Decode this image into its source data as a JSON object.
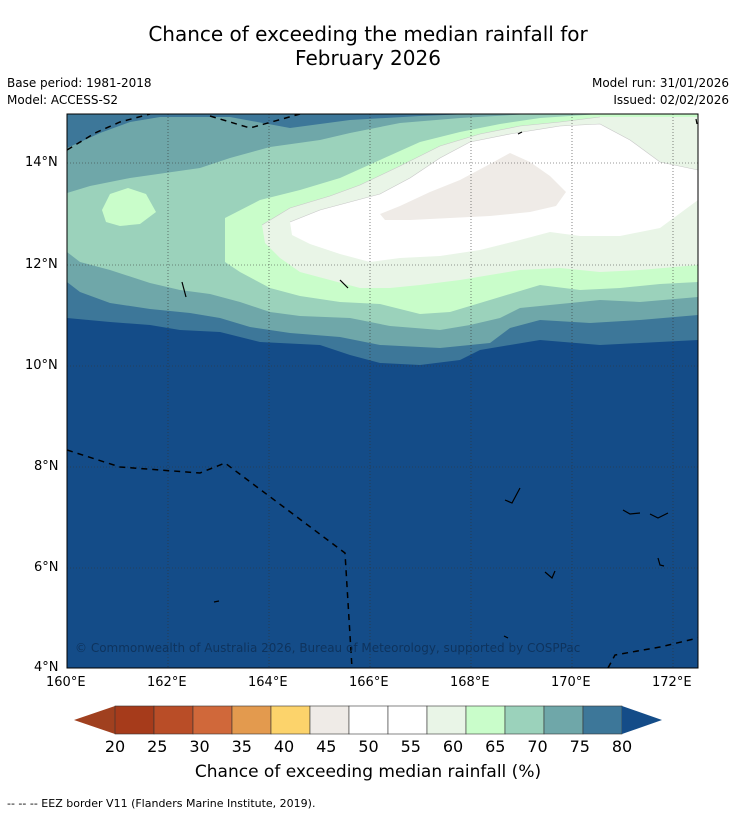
{
  "title_line1": "Chance of exceeding the median rainfall for",
  "title_line2": "February 2026",
  "meta": {
    "base_period": "Base period: 1981-2018",
    "model": "Model: ACCESS-S2",
    "model_run": "Model run: 31/01/2026",
    "issued": "Issued: 02/02/2026"
  },
  "axes": {
    "lat_ticks": [
      "14°N",
      "12°N",
      "10°N",
      "8°N",
      "6°N",
      "4°N"
    ],
    "lon_ticks": [
      "160°E",
      "162°E",
      "164°E",
      "166°E",
      "168°E",
      "170°E",
      "172°E"
    ]
  },
  "copyright": "© Commonwealth of Australia 2026, Bureau of Meteorology, supported by COSPPac",
  "colorbar": {
    "ticks": [
      "20",
      "25",
      "30",
      "35",
      "40",
      "45",
      "50",
      "55",
      "60",
      "65",
      "70",
      "75",
      "80"
    ],
    "label": "Chance of exceeding median rainfall (%)",
    "colors": [
      "#a63b1b",
      "#b94d27",
      "#d0683a",
      "#e39a4e",
      "#fcd36b",
      "#efebe7",
      "#ffffff",
      "#ffffff",
      "#e9f5e7",
      "#c9fdca",
      "#9bd2bb",
      "#6fa7a9",
      "#3d7799"
    ],
    "under_color": "#a0401f",
    "over_color": "#144c88"
  },
  "footnote": "--  --  -- EEZ border V11 (Flanders Marine Institute, 2019).",
  "map_colors": {
    "deep": "#144c88",
    "c75": "#3d7799",
    "c70": "#6fa7a9",
    "c65": "#9bd2bb",
    "c60": "#c9fdca",
    "c55": "#e9f5e7",
    "c50": "#ffffff",
    "c45": "#efebe7"
  }
}
